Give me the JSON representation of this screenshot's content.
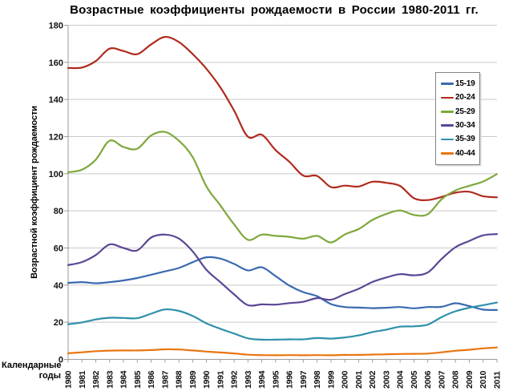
{
  "chart": {
    "title": "Возрастные коэффициенты рождаемости в России 1980-2011 гг.",
    "ylabel": "Возрастной коэффициент рождаемости",
    "xlabel_line1": "Календарные",
    "xlabel_line2": "годы"
  },
  "chart_data": {
    "type": "line",
    "title": "Возрастные коэффициенты рождаемости в России 1980-2011 гг.",
    "xlabel": "Календарные годы",
    "ylabel": "Возрастной коэффициент рождаемости",
    "grid": true,
    "smooth": true,
    "legend_position": "right-inside",
    "ylim": [
      0,
      180
    ],
    "ytick_step": 20,
    "yticks": [
      0,
      20,
      40,
      60,
      80,
      100,
      120,
      140,
      160,
      180
    ],
    "x": [
      "1980",
      "1981",
      "1982",
      "1983",
      "1984",
      "1985",
      "1986",
      "1987",
      "1988",
      "1989",
      "1990",
      "1991",
      "1992",
      "1993",
      "1994",
      "1995",
      "1996",
      "1997",
      "1998",
      "1999",
      "2000",
      "2001",
      "2002",
      "2003",
      "2004",
      "2005",
      "2006",
      "2007",
      "2008",
      "2009",
      "2010",
      "2011"
    ],
    "series": [
      {
        "name": "15-19",
        "color": "#3a6ab0",
        "values": [
          41.2,
          41.6,
          41.0,
          41.6,
          42.5,
          43.8,
          45.6,
          47.4,
          49.2,
          52.3,
          55.0,
          54.3,
          51.4,
          47.9,
          49.6,
          44.8,
          39.7,
          36.2,
          34.0,
          29.8,
          28.2,
          27.9,
          27.6,
          27.8,
          28.2,
          27.5,
          28.2,
          28.3,
          30.2,
          28.7,
          26.8,
          26.6
        ]
      },
      {
        "name": "20-24",
        "color": "#b02a1e",
        "values": [
          157.0,
          157.2,
          160.7,
          167.4,
          166.1,
          164.4,
          169.7,
          173.7,
          171.0,
          164.5,
          156.5,
          146.6,
          134.0,
          119.9,
          121.0,
          112.7,
          106.4,
          99.0,
          98.8,
          92.8,
          93.6,
          93.1,
          95.7,
          95.1,
          93.4,
          86.8,
          85.8,
          87.5,
          89.8,
          90.3,
          87.9,
          87.3
        ]
      },
      {
        "name": "25-29",
        "color": "#7ea83c",
        "values": [
          100.8,
          102.2,
          107.6,
          117.8,
          114.4,
          113.5,
          120.6,
          122.5,
          117.8,
          109.0,
          93.1,
          83.0,
          72.7,
          64.4,
          67.2,
          66.5,
          66.0,
          65.0,
          66.5,
          63.0,
          67.3,
          70.2,
          75.1,
          78.3,
          80.2,
          77.8,
          78.2,
          86.3,
          91.0,
          93.5,
          95.8,
          99.8
        ]
      },
      {
        "name": "30-34",
        "color": "#5c4696",
        "values": [
          50.8,
          52.4,
          56.2,
          61.9,
          60.0,
          58.7,
          65.6,
          67.2,
          65.1,
          58.2,
          48.2,
          41.6,
          35.0,
          29.2,
          29.6,
          29.5,
          30.3,
          31.0,
          33.0,
          32.1,
          35.2,
          38.0,
          41.7,
          44.1,
          45.9,
          45.3,
          46.8,
          54.1,
          60.4,
          63.8,
          66.8,
          67.5
        ]
      },
      {
        "name": "35-39",
        "color": "#2f91aa",
        "values": [
          18.9,
          19.9,
          21.5,
          22.4,
          22.3,
          22.2,
          24.6,
          26.9,
          26.1,
          23.4,
          19.4,
          16.5,
          13.9,
          11.3,
          10.6,
          10.6,
          10.8,
          10.8,
          11.5,
          11.2,
          11.8,
          12.9,
          14.7,
          16.0,
          17.6,
          17.8,
          18.7,
          22.8,
          25.9,
          27.8,
          29.2,
          30.6
        ]
      },
      {
        "name": "40-44",
        "color": "#e87610",
        "values": [
          3.3,
          3.8,
          4.4,
          4.7,
          4.8,
          4.8,
          5.0,
          5.4,
          5.3,
          4.8,
          4.2,
          3.7,
          3.2,
          2.5,
          2.3,
          2.2,
          2.3,
          2.2,
          2.3,
          2.2,
          2.4,
          2.4,
          2.6,
          2.7,
          2.9,
          3.0,
          3.1,
          3.8,
          4.6,
          5.2,
          5.9,
          6.4
        ]
      }
    ],
    "style": {
      "gridline_color": "#c9c9c9",
      "axis_color": "#9b9b9b",
      "tick_label_color": "#111111"
    }
  }
}
